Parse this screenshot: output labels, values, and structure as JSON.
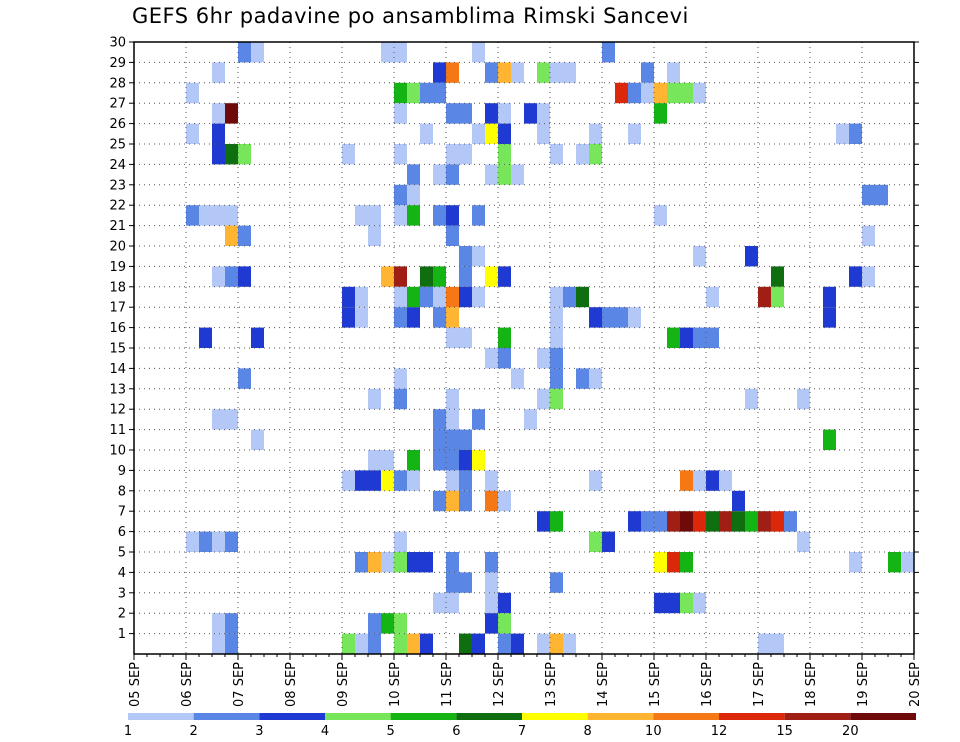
{
  "chart_data": {
    "type": "heatmap",
    "title": "GEFS 6hr padavine po ansamblima Rimski Sancevi",
    "xlabel": "",
    "ylabel": "",
    "x_ticks": [
      "05 SEP",
      "06 SEP",
      "07 SEP",
      "08 SEP",
      "09 SEP",
      "10 SEP",
      "11 SEP",
      "12 SEP",
      "13 SEP",
      "14 SEP",
      "15 SEP",
      "16 SEP",
      "17 SEP",
      "18 SEP",
      "19 SEP",
      "20 SEP"
    ],
    "xlim": [
      "05 SEP 00Z",
      "20 SEP 00Z"
    ],
    "x_step": "6hr",
    "y_ticks": [
      1,
      2,
      3,
      4,
      5,
      6,
      7,
      8,
      9,
      10,
      11,
      12,
      13,
      14,
      15,
      16,
      17,
      18,
      19,
      20,
      21,
      22,
      23,
      24,
      25,
      26,
      27,
      28,
      29,
      30
    ],
    "ylim": [
      0,
      30
    ],
    "grid": true,
    "colorbar": {
      "labels": [
        "1",
        "2",
        "3",
        "4",
        "5",
        "6",
        "7",
        "8",
        "10",
        "12",
        "15",
        "20"
      ],
      "colors": [
        "#b4c8f8",
        "#5a87e6",
        "#1e3ad2",
        "#78e65a",
        "#14b414",
        "#0f6e0f",
        "#ffff00",
        "#ffb432",
        "#f57814",
        "#dc280a",
        "#a01e14",
        "#6e0a0a"
      ]
    },
    "cells": [
      [
        30,
        "07 SEP 00Z",
        2
      ],
      [
        30,
        "07 SEP 06Z",
        1
      ],
      [
        30,
        "09 SEP 18Z",
        1
      ],
      [
        30,
        "10 SEP 00Z",
        1
      ],
      [
        30,
        "11 SEP 12Z",
        1
      ],
      [
        30,
        "14 SEP 00Z",
        2
      ],
      [
        29,
        "06 SEP 12Z",
        1
      ],
      [
        29,
        "10 SEP 18Z",
        3
      ],
      [
        29,
        "11 SEP 00Z",
        10
      ],
      [
        29,
        "11 SEP 18Z",
        2
      ],
      [
        29,
        "12 SEP 00Z",
        8
      ],
      [
        29,
        "12 SEP 06Z",
        1
      ],
      [
        29,
        "12 SEP 18Z",
        4
      ],
      [
        29,
        "13 SEP 00Z",
        1
      ],
      [
        29,
        "13 SEP 06Z",
        1
      ],
      [
        29,
        "14 SEP 18Z",
        2
      ],
      [
        29,
        "15 SEP 06Z",
        1
      ],
      [
        28,
        "06 SEP 00Z",
        1
      ],
      [
        28,
        "10 SEP 00Z",
        5
      ],
      [
        28,
        "10 SEP 06Z",
        4
      ],
      [
        28,
        "10 SEP 12Z",
        2
      ],
      [
        28,
        "10 SEP 18Z",
        2
      ],
      [
        28,
        "14 SEP 06Z",
        12
      ],
      [
        28,
        "14 SEP 12Z",
        2
      ],
      [
        28,
        "14 SEP 18Z",
        1
      ],
      [
        28,
        "15 SEP 00Z",
        8
      ],
      [
        28,
        "15 SEP 06Z",
        4
      ],
      [
        28,
        "15 SEP 12Z",
        4
      ],
      [
        28,
        "15 SEP 18Z",
        1
      ],
      [
        27,
        "06 SEP 12Z",
        1
      ],
      [
        27,
        "06 SEP 18Z",
        20
      ],
      [
        27,
        "10 SEP 00Z",
        1
      ],
      [
        27,
        "11 SEP 00Z",
        2
      ],
      [
        27,
        "11 SEP 06Z",
        2
      ],
      [
        27,
        "11 SEP 18Z",
        3
      ],
      [
        27,
        "12 SEP 00Z",
        1
      ],
      [
        27,
        "12 SEP 12Z",
        3
      ],
      [
        27,
        "12 SEP 18Z",
        1
      ],
      [
        27,
        "15 SEP 00Z",
        5
      ],
      [
        26,
        "06 SEP 00Z",
        1
      ],
      [
        26,
        "06 SEP 12Z",
        3
      ],
      [
        26,
        "10 SEP 12Z",
        1
      ],
      [
        26,
        "11 SEP 12Z",
        1
      ],
      [
        26,
        "11 SEP 18Z",
        7
      ],
      [
        26,
        "12 SEP 00Z",
        3
      ],
      [
        26,
        "12 SEP 18Z",
        1
      ],
      [
        26,
        "13 SEP 18Z",
        1
      ],
      [
        26,
        "14 SEP 12Z",
        1
      ],
      [
        26,
        "18 SEP 12Z",
        1
      ],
      [
        26,
        "18 SEP 18Z",
        2
      ],
      [
        25,
        "06 SEP 12Z",
        3
      ],
      [
        25,
        "06 SEP 18Z",
        6
      ],
      [
        25,
        "07 SEP 00Z",
        4
      ],
      [
        25,
        "09 SEP 00Z",
        1
      ],
      [
        25,
        "10 SEP 00Z",
        1
      ],
      [
        25,
        "11 SEP 00Z",
        1
      ],
      [
        25,
        "11 SEP 06Z",
        1
      ],
      [
        25,
        "12 SEP 00Z",
        4
      ],
      [
        25,
        "13 SEP 00Z",
        1
      ],
      [
        25,
        "13 SEP 12Z",
        1
      ],
      [
        25,
        "13 SEP 18Z",
        4
      ],
      [
        24,
        "10 SEP 06Z",
        2
      ],
      [
        24,
        "10 SEP 18Z",
        1
      ],
      [
        24,
        "11 SEP 00Z",
        2
      ],
      [
        24,
        "11 SEP 18Z",
        1
      ],
      [
        24,
        "12 SEP 00Z",
        4
      ],
      [
        24,
        "12 SEP 06Z",
        1
      ],
      [
        23,
        "10 SEP 00Z",
        2
      ],
      [
        23,
        "10 SEP 06Z",
        1
      ],
      [
        23,
        "19 SEP 00Z",
        2
      ],
      [
        23,
        "19 SEP 06Z",
        2
      ],
      [
        22,
        "06 SEP 00Z",
        2
      ],
      [
        22,
        "06 SEP 06Z",
        1
      ],
      [
        22,
        "06 SEP 12Z",
        1
      ],
      [
        22,
        "06 SEP 18Z",
        1
      ],
      [
        22,
        "09 SEP 06Z",
        1
      ],
      [
        22,
        "09 SEP 12Z",
        1
      ],
      [
        22,
        "10 SEP 00Z",
        1
      ],
      [
        22,
        "10 SEP 06Z",
        5
      ],
      [
        22,
        "10 SEP 18Z",
        2
      ],
      [
        22,
        "11 SEP 00Z",
        3
      ],
      [
        22,
        "11 SEP 12Z",
        2
      ],
      [
        22,
        "15 SEP 00Z",
        1
      ],
      [
        21,
        "06 SEP 18Z",
        8
      ],
      [
        21,
        "07 SEP 00Z",
        2
      ],
      [
        21,
        "09 SEP 12Z",
        1
      ],
      [
        21,
        "11 SEP 00Z",
        2
      ],
      [
        21,
        "19 SEP 00Z",
        1
      ],
      [
        20,
        "11 SEP 06Z",
        2
      ],
      [
        20,
        "11 SEP 12Z",
        1
      ],
      [
        20,
        "15 SEP 18Z",
        1
      ],
      [
        20,
        "16 SEP 18Z",
        3
      ],
      [
        19,
        "06 SEP 12Z",
        1
      ],
      [
        19,
        "06 SEP 18Z",
        2
      ],
      [
        19,
        "07 SEP 00Z",
        3
      ],
      [
        19,
        "09 SEP 18Z",
        8
      ],
      [
        19,
        "10 SEP 00Z",
        15
      ],
      [
        19,
        "10 SEP 12Z",
        6
      ],
      [
        19,
        "10 SEP 18Z",
        5
      ],
      [
        19,
        "11 SEP 06Z",
        2
      ],
      [
        19,
        "11 SEP 18Z",
        7
      ],
      [
        19,
        "12 SEP 00Z",
        3
      ],
      [
        19,
        "17 SEP 06Z",
        6
      ],
      [
        19,
        "18 SEP 18Z",
        3
      ],
      [
        19,
        "19 SEP 00Z",
        1
      ],
      [
        18,
        "09 SEP 00Z",
        3
      ],
      [
        18,
        "09 SEP 06Z",
        1
      ],
      [
        18,
        "10 SEP 00Z",
        1
      ],
      [
        18,
        "10 SEP 06Z",
        5
      ],
      [
        18,
        "10 SEP 12Z",
        2
      ],
      [
        18,
        "10 SEP 18Z",
        1
      ],
      [
        18,
        "11 SEP 00Z",
        10
      ],
      [
        18,
        "11 SEP 06Z",
        3
      ],
      [
        18,
        "11 SEP 12Z",
        1
      ],
      [
        18,
        "13 SEP 00Z",
        1
      ],
      [
        18,
        "13 SEP 06Z",
        2
      ],
      [
        18,
        "13 SEP 12Z",
        6
      ],
      [
        18,
        "16 SEP 00Z",
        1
      ],
      [
        18,
        "17 SEP 00Z",
        15
      ],
      [
        18,
        "17 SEP 06Z",
        4
      ],
      [
        18,
        "18 SEP 06Z",
        3
      ],
      [
        17,
        "09 SEP 00Z",
        3
      ],
      [
        17,
        "09 SEP 06Z",
        1
      ],
      [
        17,
        "10 SEP 00Z",
        2
      ],
      [
        17,
        "10 SEP 06Z",
        3
      ],
      [
        17,
        "10 SEP 18Z",
        2
      ],
      [
        17,
        "11 SEP 00Z",
        8
      ],
      [
        17,
        "13 SEP 00Z",
        1
      ],
      [
        17,
        "13 SEP 18Z",
        3
      ],
      [
        17,
        "14 SEP 00Z",
        2
      ],
      [
        17,
        "14 SEP 06Z",
        2
      ],
      [
        17,
        "14 SEP 12Z",
        1
      ],
      [
        17,
        "18 SEP 06Z",
        3
      ],
      [
        16,
        "06 SEP 06Z",
        3
      ],
      [
        16,
        "07 SEP 06Z",
        3
      ],
      [
        16,
        "11 SEP 00Z",
        1
      ],
      [
        16,
        "11 SEP 06Z",
        1
      ],
      [
        16,
        "12 SEP 00Z",
        5
      ],
      [
        16,
        "13 SEP 00Z",
        1
      ],
      [
        16,
        "15 SEP 06Z",
        5
      ],
      [
        16,
        "15 SEP 12Z",
        3
      ],
      [
        16,
        "15 SEP 18Z",
        2
      ],
      [
        16,
        "16 SEP 00Z",
        2
      ],
      [
        15,
        "11 SEP 18Z",
        1
      ],
      [
        15,
        "12 SEP 00Z",
        2
      ],
      [
        15,
        "12 SEP 18Z",
        1
      ],
      [
        15,
        "13 SEP 00Z",
        2
      ],
      [
        14,
        "07 SEP 00Z",
        2
      ],
      [
        14,
        "10 SEP 00Z",
        1
      ],
      [
        14,
        "12 SEP 06Z",
        1
      ],
      [
        14,
        "13 SEP 00Z",
        2
      ],
      [
        14,
        "13 SEP 12Z",
        2
      ],
      [
        14,
        "13 SEP 18Z",
        1
      ],
      [
        13,
        "09 SEP 12Z",
        1
      ],
      [
        13,
        "10 SEP 00Z",
        2
      ],
      [
        13,
        "11 SEP 00Z",
        1
      ],
      [
        13,
        "12 SEP 18Z",
        1
      ],
      [
        13,
        "13 SEP 00Z",
        4
      ],
      [
        13,
        "16 SEP 18Z",
        1
      ],
      [
        13,
        "17 SEP 18Z",
        1
      ],
      [
        12,
        "06 SEP 12Z",
        1
      ],
      [
        12,
        "06 SEP 18Z",
        1
      ],
      [
        12,
        "10 SEP 18Z",
        2
      ],
      [
        12,
        "11 SEP 00Z",
        1
      ],
      [
        12,
        "11 SEP 12Z",
        2
      ],
      [
        12,
        "12 SEP 12Z",
        1
      ],
      [
        11,
        "07 SEP 06Z",
        1
      ],
      [
        11,
        "10 SEP 18Z",
        2
      ],
      [
        11,
        "11 SEP 00Z",
        2
      ],
      [
        11,
        "11 SEP 06Z",
        2
      ],
      [
        11,
        "18 SEP 06Z",
        5
      ],
      [
        10,
        "09 SEP 12Z",
        1
      ],
      [
        10,
        "09 SEP 18Z",
        1
      ],
      [
        10,
        "10 SEP 06Z",
        5
      ],
      [
        10,
        "10 SEP 18Z",
        2
      ],
      [
        10,
        "11 SEP 00Z",
        2
      ],
      [
        10,
        "11 SEP 06Z",
        3
      ],
      [
        10,
        "11 SEP 12Z",
        7
      ],
      [
        9,
        "09 SEP 00Z",
        1
      ],
      [
        9,
        "09 SEP 06Z",
        3
      ],
      [
        9,
        "09 SEP 12Z",
        3
      ],
      [
        9,
        "09 SEP 18Z",
        7
      ],
      [
        9,
        "10 SEP 00Z",
        2
      ],
      [
        9,
        "10 SEP 06Z",
        1
      ],
      [
        9,
        "11 SEP 00Z",
        1
      ],
      [
        9,
        "11 SEP 06Z",
        2
      ],
      [
        9,
        "11 SEP 18Z",
        1
      ],
      [
        9,
        "13 SEP 18Z",
        1
      ],
      [
        9,
        "15 SEP 12Z",
        10
      ],
      [
        9,
        "15 SEP 18Z",
        1
      ],
      [
        9,
        "16 SEP 00Z",
        3
      ],
      [
        9,
        "16 SEP 06Z",
        1
      ],
      [
        8,
        "10 SEP 18Z",
        2
      ],
      [
        8,
        "11 SEP 00Z",
        8
      ],
      [
        8,
        "11 SEP 06Z",
        2
      ],
      [
        8,
        "11 SEP 18Z",
        10
      ],
      [
        8,
        "12 SEP 00Z",
        1
      ],
      [
        8,
        "16 SEP 12Z",
        3
      ],
      [
        7,
        "12 SEP 18Z",
        3
      ],
      [
        7,
        "13 SEP 00Z",
        5
      ],
      [
        7,
        "14 SEP 12Z",
        3
      ],
      [
        7,
        "14 SEP 18Z",
        2
      ],
      [
        7,
        "15 SEP 00Z",
        2
      ],
      [
        7,
        "15 SEP 06Z",
        15
      ],
      [
        7,
        "15 SEP 12Z",
        20
      ],
      [
        7,
        "15 SEP 18Z",
        12
      ],
      [
        7,
        "16 SEP 00Z",
        6
      ],
      [
        7,
        "16 SEP 06Z",
        15
      ],
      [
        7,
        "16 SEP 12Z",
        6
      ],
      [
        7,
        "16 SEP 18Z",
        5
      ],
      [
        7,
        "17 SEP 00Z",
        15
      ],
      [
        7,
        "17 SEP 06Z",
        12
      ],
      [
        7,
        "17 SEP 12Z",
        2
      ],
      [
        6,
        "06 SEP 00Z",
        1
      ],
      [
        6,
        "06 SEP 06Z",
        2
      ],
      [
        6,
        "06 SEP 12Z",
        1
      ],
      [
        6,
        "06 SEP 18Z",
        2
      ],
      [
        6,
        "10 SEP 00Z",
        1
      ],
      [
        6,
        "13 SEP 18Z",
        4
      ],
      [
        6,
        "14 SEP 00Z",
        3
      ],
      [
        6,
        "17 SEP 18Z",
        1
      ],
      [
        5,
        "09 SEP 06Z",
        2
      ],
      [
        5,
        "09 SEP 12Z",
        8
      ],
      [
        5,
        "09 SEP 18Z",
        1
      ],
      [
        5,
        "10 SEP 00Z",
        4
      ],
      [
        5,
        "10 SEP 06Z",
        3
      ],
      [
        5,
        "10 SEP 12Z",
        3
      ],
      [
        5,
        "11 SEP 00Z",
        2
      ],
      [
        5,
        "11 SEP 18Z",
        2
      ],
      [
        5,
        "15 SEP 00Z",
        7
      ],
      [
        5,
        "15 SEP 06Z",
        12
      ],
      [
        5,
        "15 SEP 12Z",
        5
      ],
      [
        5,
        "18 SEP 18Z",
        1
      ],
      [
        5,
        "19 SEP 12Z",
        5
      ],
      [
        5,
        "19 SEP 18Z",
        1
      ],
      [
        4,
        "11 SEP 00Z",
        2
      ],
      [
        4,
        "11 SEP 06Z",
        2
      ],
      [
        4,
        "11 SEP 18Z",
        1
      ],
      [
        4,
        "13 SEP 00Z",
        2
      ],
      [
        3,
        "10 SEP 18Z",
        1
      ],
      [
        3,
        "11 SEP 00Z",
        1
      ],
      [
        3,
        "11 SEP 18Z",
        1
      ],
      [
        3,
        "12 SEP 00Z",
        3
      ],
      [
        3,
        "15 SEP 00Z",
        3
      ],
      [
        3,
        "15 SEP 06Z",
        3
      ],
      [
        3,
        "15 SEP 12Z",
        4
      ],
      [
        3,
        "15 SEP 18Z",
        1
      ],
      [
        2,
        "06 SEP 12Z",
        1
      ],
      [
        2,
        "06 SEP 18Z",
        2
      ],
      [
        2,
        "09 SEP 12Z",
        2
      ],
      [
        2,
        "09 SEP 18Z",
        5
      ],
      [
        2,
        "10 SEP 00Z",
        4
      ],
      [
        2,
        "11 SEP 18Z",
        3
      ],
      [
        2,
        "12 SEP 00Z",
        4
      ],
      [
        1,
        "06 SEP 12Z",
        1
      ],
      [
        1,
        "06 SEP 18Z",
        2
      ],
      [
        1,
        "09 SEP 00Z",
        4
      ],
      [
        1,
        "09 SEP 06Z",
        1
      ],
      [
        1,
        "09 SEP 12Z",
        2
      ],
      [
        1,
        "10 SEP 00Z",
        4
      ],
      [
        1,
        "10 SEP 06Z",
        8
      ],
      [
        1,
        "10 SEP 12Z",
        3
      ],
      [
        1,
        "11 SEP 06Z",
        6
      ],
      [
        1,
        "11 SEP 12Z",
        3
      ],
      [
        1,
        "12 SEP 00Z",
        2
      ],
      [
        1,
        "12 SEP 06Z",
        3
      ],
      [
        1,
        "12 SEP 18Z",
        1
      ],
      [
        1,
        "13 SEP 00Z",
        8
      ],
      [
        1,
        "13 SEP 06Z",
        1
      ],
      [
        1,
        "17 SEP 00Z",
        1
      ],
      [
        1,
        "17 SEP 06Z",
        1
      ]
    ]
  }
}
